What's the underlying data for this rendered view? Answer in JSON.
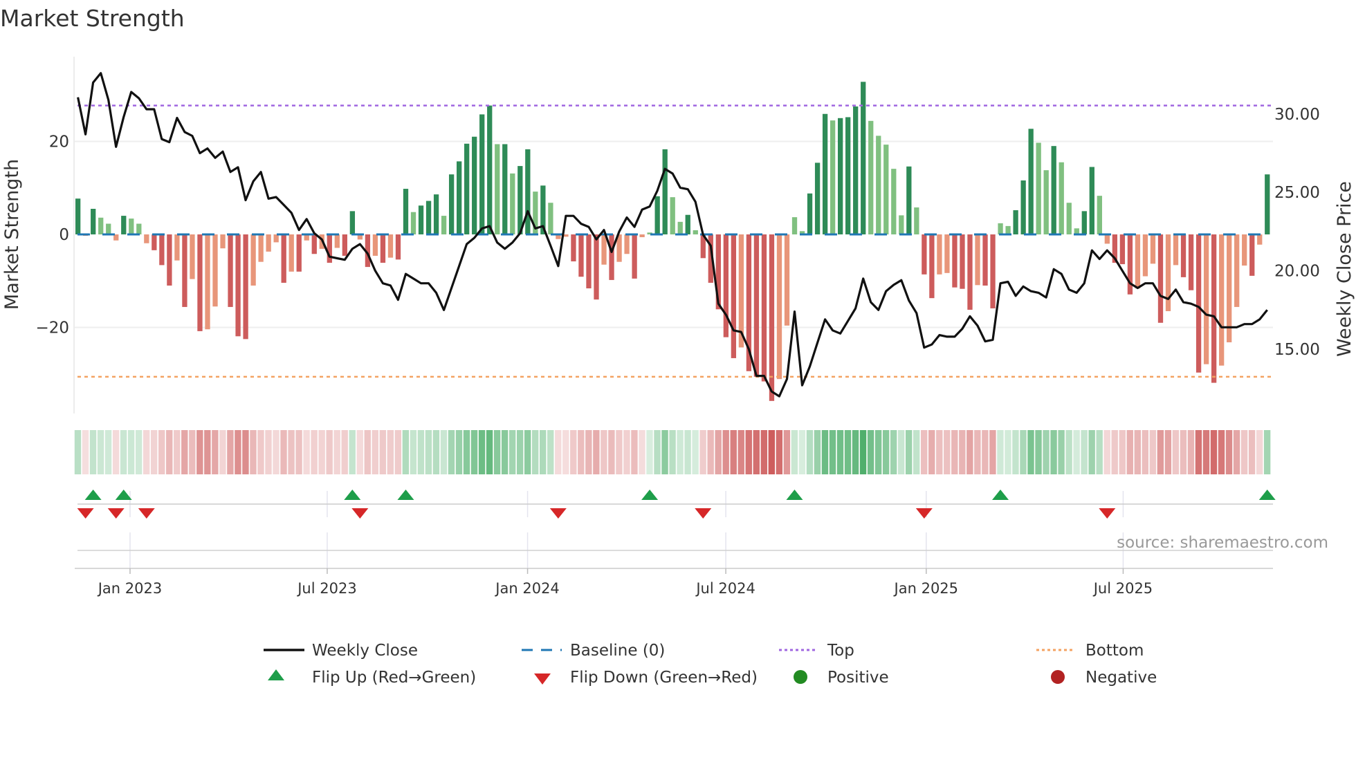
{
  "chart_data": {
    "type": "bar",
    "title": "Market Strength",
    "ylabel": "Market Strength",
    "y2label": "Weekly Close Price",
    "ylim": [
      -38.5,
      38.2
    ],
    "y2lim": [
      10.9,
      33.65
    ],
    "yticks": [
      {
        "value": 20,
        "label": "20"
      },
      {
        "value": 0,
        "label": "0"
      },
      {
        "value": -20,
        "label": "−20"
      }
    ],
    "y2ticks": [
      {
        "value": 30,
        "label": "30.00"
      },
      {
        "value": 25,
        "label": "25.00"
      },
      {
        "value": 20,
        "label": "20.00"
      },
      {
        "value": 15,
        "label": "15.00"
      }
    ],
    "xticks": [
      {
        "week": 6.84,
        "label": "Jan 2023"
      },
      {
        "week": 32.7,
        "label": "Jul 2023"
      },
      {
        "week": 58.98,
        "label": "Jan 2024"
      },
      {
        "week": 84.98,
        "label": "Jul 2024"
      },
      {
        "week": 111.27,
        "label": "Jan 2025"
      },
      {
        "week": 137.1,
        "label": "Jul 2025"
      }
    ],
    "top_level": 27.7,
    "bottom_level": -30.6,
    "grid": true,
    "legend_placement": "bottom-center",
    "strength": [
      7.7,
      -0.3,
      5.5,
      3.6,
      2.3,
      -1.3,
      4.0,
      3.4,
      2.3,
      -1.9,
      -3.4,
      -6.6,
      -11,
      -5.6,
      -15.6,
      -9.6,
      -20.8,
      -20.4,
      -15.5,
      -3,
      -15.6,
      -21.9,
      -22.5,
      -11,
      -5.9,
      -3.7,
      -1.7,
      -10.4,
      -8,
      -8,
      -1.3,
      -4.2,
      -3.1,
      -6.1,
      -2.9,
      -4.6,
      5,
      -1.1,
      -7,
      -4.6,
      -6.1,
      -5,
      -5.4,
      9.8,
      4.8,
      6.2,
      7.2,
      8.6,
      4,
      12.9,
      15.7,
      19.5,
      21,
      25.8,
      27.7,
      19.4,
      19.4,
      13.1,
      14.7,
      18.3,
      9.2,
      10.5,
      6.8,
      -1,
      -0.5,
      -5.8,
      -9.1,
      -11.6,
      -14,
      -6.5,
      -9.8,
      -5.9,
      -4.2,
      -9.5,
      -0.6,
      0.4,
      8.2,
      18.3,
      8,
      2.7,
      4.2,
      0.9,
      -5.1,
      -10.4,
      -16.1,
      -22.1,
      -26.6,
      -24.3,
      -29.4,
      -30.6,
      -31.6,
      -35.8,
      -31.1,
      -19.6,
      3.7,
      0.7,
      8.8,
      15.4,
      25.9,
      24.5,
      25,
      25.2,
      27.5,
      32.8,
      24.4,
      21.2,
      19.3,
      14.1,
      4.1,
      14.6,
      5.8,
      -8.6,
      -13.7,
      -8.6,
      -8.3,
      -11.4,
      -11.7,
      -16.2,
      -10.9,
      -11,
      -15.9,
      2.4,
      1.8,
      5.2,
      11.6,
      22.7,
      19.7,
      13.8,
      19,
      15.5,
      6.8,
      1.3,
      5,
      14.5,
      8.3,
      -2,
      -6.1,
      -6.4,
      -12.9,
      -11.6,
      -9,
      -6.3,
      -19,
      -16.5,
      -6.6,
      -9.2,
      -12,
      -29.7,
      -27.9,
      -31.9,
      -28.2,
      -23.2,
      -15.6,
      -6.7,
      -8.9,
      -2.2,
      12.9
    ],
    "weekly_close": [
      31.06,
      28.7,
      32,
      32.6,
      30.9,
      27.9,
      29.8,
      31.4,
      31,
      30.3,
      30.3,
      28.4,
      28.2,
      29.75,
      28.85,
      28.6,
      27.5,
      27.8,
      27.2,
      27.6,
      26.3,
      26.6,
      24.5,
      25.7,
      26.3,
      24.6,
      24.7,
      24.2,
      23.7,
      22.6,
      23.3,
      22.4,
      22,
      20.9,
      20.8,
      20.7,
      21.4,
      21.7,
      21.1,
      20,
      19.2,
      19.06,
      18.15,
      19.8,
      19.5,
      19.2,
      19.2,
      18.6,
      17.5,
      18.9,
      20.3,
      21.7,
      22.1,
      22.7,
      22.85,
      21.8,
      21.4,
      21.8,
      22.4,
      23.8,
      22.7,
      22.85,
      21.6,
      20.3,
      23.5,
      23.5,
      23,
      22.8,
      22,
      22.6,
      21.2,
      22.5,
      23.4,
      22.8,
      23.9,
      24.1,
      25.1,
      26.5,
      26.2,
      25.3,
      25.2,
      24.4,
      22.3,
      21.6,
      17.9,
      17.2,
      16.2,
      16.1,
      15,
      13.3,
      13.3,
      12.3,
      12,
      13.1,
      17.4,
      12.7,
      13.9,
      15.4,
      16.9,
      16.2,
      16,
      16.8,
      17.6,
      19.5,
      18,
      17.5,
      18.7,
      19.1,
      19.4,
      18.1,
      17.3,
      15.1,
      15.3,
      15.9,
      15.8,
      15.8,
      16.3,
      17.1,
      16.5,
      15.5,
      15.6,
      19.2,
      19.3,
      18.4,
      19,
      18.7,
      18.6,
      18.3,
      20.1,
      19.8,
      18.8,
      18.6,
      19.2,
      21.3,
      20.75,
      21.3,
      20.8,
      20,
      19.2,
      18.9,
      19.2,
      19.2,
      18.4,
      18.2,
      18.8,
      18,
      17.9,
      17.7,
      17.2,
      17.1,
      16.4,
      16.4,
      16.4,
      16.6,
      16.6,
      16.9,
      17.5
    ],
    "flip_up_weeks": [
      2,
      6,
      36,
      43,
      75,
      94,
      121,
      156
    ],
    "flip_down_weeks": [
      1,
      5,
      9,
      37,
      63,
      82,
      111,
      135
    ],
    "colors": {
      "strong_positive": "#2e8b57",
      "weak_positive": "#80c080",
      "strong_negative": "#cd5c5c",
      "weak_negative": "#e8967a",
      "line": "#111111",
      "baseline": "#1f77b4",
      "top": "#a066e0",
      "bottom": "#f4a261",
      "flip_up": "#1e9e4a",
      "flip_down": "#d62728",
      "positive_dot": "#228b22",
      "negative_dot": "#b22222"
    }
  },
  "legend": {
    "weekly_close": "Weekly Close",
    "baseline": "Baseline (0)",
    "top": "Top",
    "bottom": "Bottom",
    "flip_up": "Flip Up (Red→Green)",
    "flip_down": "Flip Down (Green→Red)",
    "positive": "Positive",
    "negative": "Negative"
  },
  "source": "source: sharemaestro.com"
}
